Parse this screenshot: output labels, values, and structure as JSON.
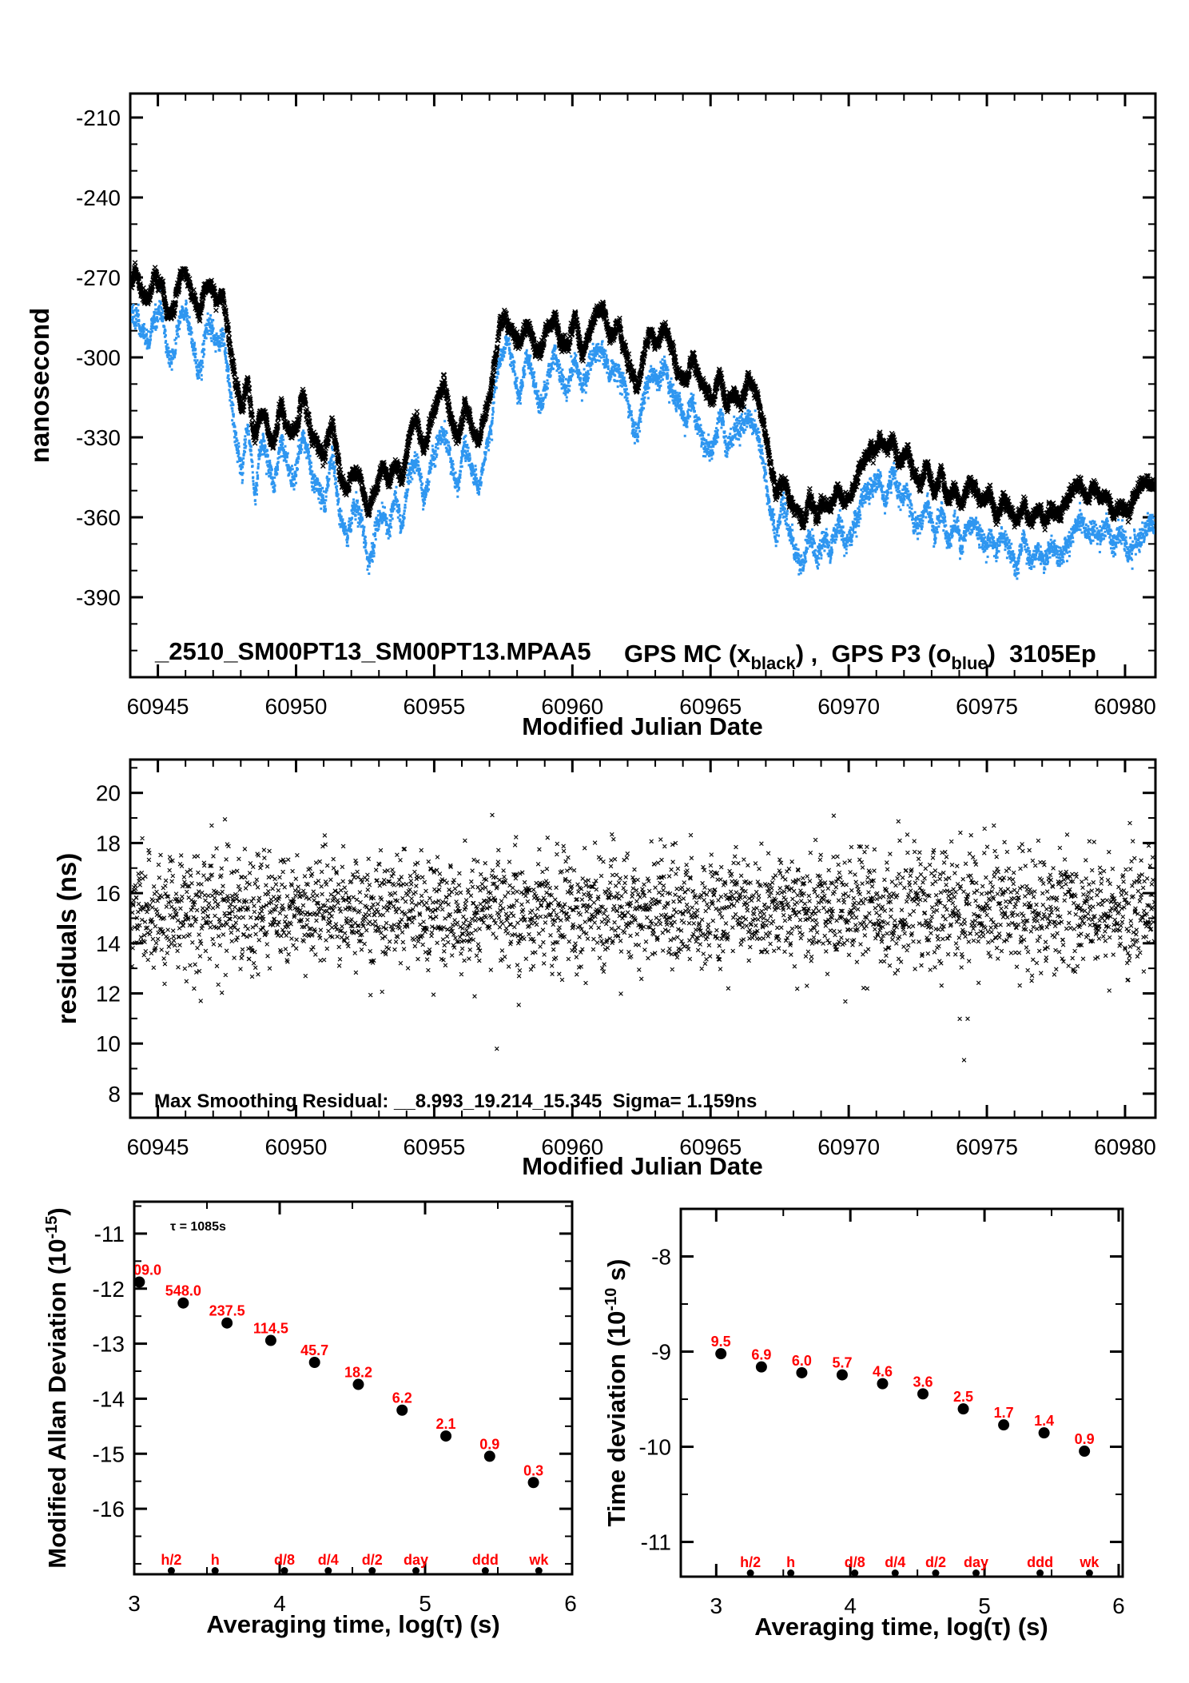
{
  "page": {
    "background": "#ffffff",
    "series_blue": "#2E96F0",
    "annotation_red": "#FF0000",
    "frame_color": "#000000"
  },
  "chart_data": [
    {
      "type": "scatter",
      "title": "",
      "ylabel": "nanosecond",
      "xlabel": "Modified Julian Date",
      "xlim": [
        60944,
        60981.1
      ],
      "ylim": [
        -420,
        -201
      ],
      "xticks": [
        60945,
        60950,
        60955,
        60960,
        60965,
        60970,
        60975,
        60980
      ],
      "x_minor_step": 1,
      "yticks": [
        -390,
        -360,
        -330,
        -300,
        -270,
        -240,
        -210
      ],
      "y_minor_step": 10,
      "grid": false,
      "annotation_file": "_2510_SM00PT13_SM00PT13.MPAA5",
      "legend_parts": [
        [
          "GPS MC (x",
          ""
        ],
        [
          "black",
          "sub"
        ],
        [
          ") ,  GPS P3 (o",
          ""
        ],
        [
          "blue",
          "sub"
        ],
        [
          ")  3105Ep",
          ""
        ]
      ],
      "series": [
        {
          "name": "GPS MC",
          "marker": "x",
          "color": "#000000"
        },
        {
          "name": "GPS P3",
          "marker": "o",
          "color": "#2E96F0",
          "mean_offset_ns": 14.5
        }
      ],
      "trend_black_ns": [
        [
          60944,
          -272
        ],
        [
          60944.2,
          -267
        ],
        [
          60944.45,
          -275
        ],
        [
          60944.7,
          -279
        ],
        [
          60944.9,
          -271
        ],
        [
          60945.15,
          -272
        ],
        [
          60945.35,
          -281
        ],
        [
          60945.6,
          -283
        ],
        [
          60945.8,
          -272
        ],
        [
          60946,
          -270
        ],
        [
          60946.25,
          -278
        ],
        [
          60946.5,
          -284
        ],
        [
          60946.7,
          -276
        ],
        [
          60946.9,
          -272
        ],
        [
          60947.1,
          -281
        ],
        [
          60947.35,
          -276
        ],
        [
          60947.6,
          -295
        ],
        [
          60947.85,
          -312
        ],
        [
          60948.05,
          -322
        ],
        [
          60948.25,
          -309
        ],
        [
          60948.5,
          -331
        ],
        [
          60948.75,
          -321
        ],
        [
          60949,
          -326
        ],
        [
          60949.2,
          -332
        ],
        [
          60949.45,
          -318
        ],
        [
          60949.7,
          -325
        ],
        [
          60950,
          -327
        ],
        [
          60950.25,
          -314
        ],
        [
          60950.55,
          -330
        ],
        [
          60950.8,
          -333
        ],
        [
          60951.05,
          -337
        ],
        [
          60951.3,
          -324
        ],
        [
          60951.6,
          -344
        ],
        [
          60951.85,
          -350
        ],
        [
          60952.1,
          -341
        ],
        [
          60952.35,
          -345
        ],
        [
          60952.6,
          -358
        ],
        [
          60952.85,
          -353
        ],
        [
          60953.1,
          -343
        ],
        [
          60953.35,
          -350
        ],
        [
          60953.6,
          -339
        ],
        [
          60953.85,
          -346
        ],
        [
          60954.1,
          -330
        ],
        [
          60954.35,
          -322
        ],
        [
          60954.6,
          -334
        ],
        [
          60954.85,
          -327
        ],
        [
          60955.1,
          -318
        ],
        [
          60955.35,
          -312
        ],
        [
          60955.6,
          -325
        ],
        [
          60955.85,
          -331
        ],
        [
          60956.1,
          -318
        ],
        [
          60956.35,
          -327
        ],
        [
          60956.6,
          -330
        ],
        [
          60956.85,
          -320
        ],
        [
          60957.1,
          -307
        ],
        [
          60957.35,
          -290
        ],
        [
          60957.6,
          -283
        ],
        [
          60957.85,
          -291
        ],
        [
          60958.1,
          -297
        ],
        [
          60958.35,
          -287
        ],
        [
          60958.6,
          -295
        ],
        [
          60958.85,
          -300
        ],
        [
          60959.1,
          -290
        ],
        [
          60959.35,
          -284
        ],
        [
          60959.6,
          -292
        ],
        [
          60959.85,
          -296
        ],
        [
          60960.1,
          -286
        ],
        [
          60960.35,
          -296
        ],
        [
          60960.6,
          -291
        ],
        [
          60960.85,
          -284
        ],
        [
          60961.1,
          -283
        ],
        [
          60961.35,
          -292
        ],
        [
          60961.6,
          -288
        ],
        [
          60961.85,
          -297
        ],
        [
          60962.1,
          -305
        ],
        [
          60962.35,
          -310
        ],
        [
          60962.6,
          -299
        ],
        [
          60962.85,
          -289
        ],
        [
          60963.1,
          -295
        ],
        [
          60963.35,
          -289
        ],
        [
          60963.6,
          -298
        ],
        [
          60963.85,
          -306
        ],
        [
          60964.1,
          -310
        ],
        [
          60964.35,
          -301
        ],
        [
          60964.6,
          -309
        ],
        [
          60964.85,
          -315
        ],
        [
          60965.1,
          -317
        ],
        [
          60965.35,
          -307
        ],
        [
          60965.6,
          -318
        ],
        [
          60965.85,
          -311
        ],
        [
          60966.1,
          -315
        ],
        [
          60966.35,
          -307
        ],
        [
          60966.6,
          -314
        ],
        [
          60966.85,
          -321
        ],
        [
          60967.1,
          -338
        ],
        [
          60967.35,
          -351
        ],
        [
          60967.6,
          -345
        ],
        [
          60967.85,
          -354
        ],
        [
          60968.1,
          -357
        ],
        [
          60968.35,
          -361
        ],
        [
          60968.6,
          -351
        ],
        [
          60968.85,
          -359
        ],
        [
          60969.1,
          -352
        ],
        [
          60969.35,
          -356
        ],
        [
          60969.6,
          -349
        ],
        [
          60969.85,
          -353
        ],
        [
          60970.1,
          -350
        ],
        [
          60970.35,
          -343
        ],
        [
          60970.6,
          -337
        ],
        [
          60970.85,
          -334
        ],
        [
          60971.1,
          -331
        ],
        [
          60971.35,
          -336
        ],
        [
          60971.6,
          -330
        ],
        [
          60971.85,
          -339
        ],
        [
          60972.1,
          -334
        ],
        [
          60972.35,
          -345
        ],
        [
          60972.6,
          -347
        ],
        [
          60972.85,
          -341
        ],
        [
          60973.1,
          -351
        ],
        [
          60973.35,
          -345
        ],
        [
          60973.6,
          -354
        ],
        [
          60973.85,
          -347
        ],
        [
          60974.1,
          -355
        ],
        [
          60974.35,
          -349
        ],
        [
          60974.6,
          -352
        ],
        [
          60974.85,
          -357
        ],
        [
          60975.1,
          -351
        ],
        [
          60975.35,
          -359
        ],
        [
          60975.6,
          -353
        ],
        [
          60975.85,
          -358
        ],
        [
          60976.1,
          -362
        ],
        [
          60976.35,
          -355
        ],
        [
          60976.6,
          -363
        ],
        [
          60976.85,
          -357
        ],
        [
          60977.1,
          -362
        ],
        [
          60977.35,
          -357
        ],
        [
          60977.6,
          -361
        ],
        [
          60977.85,
          -355
        ],
        [
          60978.1,
          -351
        ],
        [
          60978.35,
          -345
        ],
        [
          60978.6,
          -352
        ],
        [
          60978.85,
          -349
        ],
        [
          60979.1,
          -355
        ],
        [
          60979.35,
          -350
        ],
        [
          60979.6,
          -357
        ],
        [
          60979.85,
          -352
        ],
        [
          60980.1,
          -358
        ],
        [
          60980.35,
          -353
        ],
        [
          60980.6,
          -349
        ],
        [
          60980.85,
          -347
        ],
        [
          60981.05,
          -349
        ]
      ]
    },
    {
      "type": "scatter",
      "ylabel": "residuals (ns)",
      "xlabel": "Modified Julian Date",
      "xlim": [
        60944,
        60981.1
      ],
      "ylim": [
        7.04,
        21.33
      ],
      "xticks": [
        60945,
        60950,
        60955,
        60960,
        60965,
        60970,
        60975,
        60980
      ],
      "x_minor_step": 1,
      "yticks": [
        8,
        10,
        12,
        14,
        16,
        18,
        20
      ],
      "y_minor_step": 1,
      "grid": false,
      "annotation": "Max Smoothing Residual: __8.993_19.214_15.345  Sigma= 1.159ns",
      "stats": {
        "min_ns": 8.993,
        "max_ns": 19.214,
        "mean_ns": 15.345,
        "sigma_ns": 1.159
      },
      "series": [
        {
          "name": "smoothing residuals",
          "marker": "x",
          "color": "#000000"
        }
      ]
    },
    {
      "type": "scatter",
      "ylabel_parts": [
        [
          "Modified Allan Deviation (10",
          ""
        ],
        [
          "-15",
          "sup"
        ],
        [
          ")",
          ""
        ]
      ],
      "xlabel": "Averaging time, log(τ) (s)",
      "xlim": [
        3,
        6.011
      ],
      "ylim": [
        -17.19,
        -10.42
      ],
      "xticks": [
        3,
        4,
        5,
        6
      ],
      "x_minor_step": 0.5,
      "yticks": [
        -16,
        -15,
        -14,
        -13,
        -12,
        -11
      ],
      "y_minor_step": 0.5,
      "grid": false,
      "tau_annotation": "τ = 1085s",
      "points": [
        {
          "label": "09.0",
          "log_tau": 3.035,
          "log10_dev": -11.88,
          "clip_left": true
        },
        {
          "label": "548.0",
          "log_tau": 3.337,
          "log10_dev": -12.261
        },
        {
          "label": "237.5",
          "log_tau": 3.638,
          "log10_dev": -12.624
        },
        {
          "label": "114.5",
          "log_tau": 3.939,
          "log10_dev": -12.941
        },
        {
          "label": "45.7",
          "log_tau": 4.24,
          "log10_dev": -13.34
        },
        {
          "label": "18.2",
          "log_tau": 4.541,
          "log10_dev": -13.74
        },
        {
          "label": "6.2",
          "log_tau": 4.842,
          "log10_dev": -14.208
        },
        {
          "label": "2.1",
          "log_tau": 5.143,
          "log10_dev": -14.678
        },
        {
          "label": "0.9",
          "log_tau": 5.444,
          "log10_dev": -15.046
        },
        {
          "label": "0.3",
          "log_tau": 5.745,
          "log10_dev": -15.523
        }
      ],
      "time_markers": [
        {
          "label": "h/2",
          "log_tau": 3.255
        },
        {
          "label": "h",
          "log_tau": 3.556
        },
        {
          "label": "d/8",
          "log_tau": 4.033
        },
        {
          "label": "d/4",
          "log_tau": 4.334
        },
        {
          "label": "d/2",
          "log_tau": 4.636
        },
        {
          "label": "day",
          "log_tau": 4.937
        },
        {
          "label": "ddd",
          "log_tau": 5.414
        },
        {
          "label": "wk",
          "log_tau": 5.782
        }
      ]
    },
    {
      "type": "scatter",
      "ylabel_parts": [
        [
          "Time deviation (10",
          ""
        ],
        [
          "-10",
          "sup"
        ],
        [
          " s)",
          ""
        ]
      ],
      "xlabel": "Averaging time, log(τ) (s)",
      "xlim": [
        2.736,
        6.03
      ],
      "ylim": [
        -11.365,
        -7.5
      ],
      "xticks": [
        3,
        4,
        5,
        6
      ],
      "x_minor_step": 0.5,
      "yticks": [
        -11,
        -10,
        -9,
        -8
      ],
      "y_minor_step": 0.5,
      "grid": false,
      "points": [
        {
          "label": "9.5",
          "log_tau": 3.035,
          "log10_dev": -9.022
        },
        {
          "label": "6.9",
          "log_tau": 3.337,
          "log10_dev": -9.161
        },
        {
          "label": "6.0",
          "log_tau": 3.638,
          "log10_dev": -9.222
        },
        {
          "label": "5.7",
          "log_tau": 3.939,
          "log10_dev": -9.244
        },
        {
          "label": "4.6",
          "log_tau": 4.24,
          "log10_dev": -9.337
        },
        {
          "label": "3.6",
          "log_tau": 4.541,
          "log10_dev": -9.444
        },
        {
          "label": "2.5",
          "log_tau": 4.842,
          "log10_dev": -9.602
        },
        {
          "label": "1.7",
          "log_tau": 5.143,
          "log10_dev": -9.77
        },
        {
          "label": "1.4",
          "log_tau": 5.444,
          "log10_dev": -9.854
        },
        {
          "label": "0.9",
          "log_tau": 5.745,
          "log10_dev": -10.046
        }
      ],
      "time_markers": [
        {
          "label": "h/2",
          "log_tau": 3.255
        },
        {
          "label": "h",
          "log_tau": 3.556
        },
        {
          "label": "d/8",
          "log_tau": 4.033
        },
        {
          "label": "d/4",
          "log_tau": 4.334
        },
        {
          "label": "d/2",
          "log_tau": 4.636
        },
        {
          "label": "day",
          "log_tau": 4.937
        },
        {
          "label": "ddd",
          "log_tau": 5.414
        },
        {
          "label": "wk",
          "log_tau": 5.782
        }
      ]
    }
  ]
}
